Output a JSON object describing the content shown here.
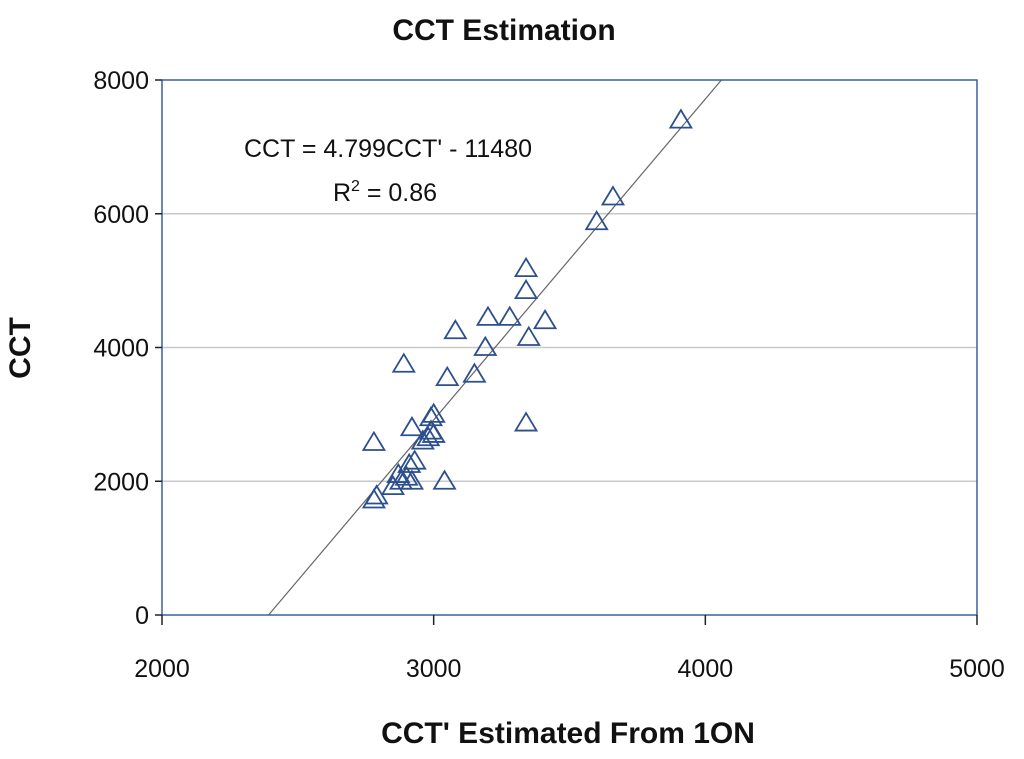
{
  "chart_data": {
    "type": "scatter",
    "title": "CCT Estimation",
    "xlabel": "CCT' Estimated From 1ON",
    "ylabel": "CCT",
    "xlim": [
      2000,
      5000
    ],
    "ylim": [
      0,
      8000
    ],
    "xticks": [
      "2000",
      "3000",
      "4000",
      "5000"
    ],
    "yticks": [
      "0",
      "2000",
      "4000",
      "6000",
      "8000"
    ],
    "grid": "horizontal",
    "marker": "open-triangle",
    "colors": {
      "marker": "#2c4f8e",
      "frame": "#3a5fa0",
      "grid": "#c8c8c8",
      "trendline": "#666666"
    },
    "annotation": {
      "equation": "CCT = 4.799CCT' - 11480",
      "r2_prefix": "R",
      "r2_sup": "2",
      "r2_suffix": " = 0.86"
    },
    "trendline": {
      "slope": 4.799,
      "intercept": -11480
    },
    "points": [
      {
        "x": 2780,
        "y": 1720
      },
      {
        "x": 2790,
        "y": 1780
      },
      {
        "x": 2850,
        "y": 1920
      },
      {
        "x": 2880,
        "y": 2000
      },
      {
        "x": 2900,
        "y": 2060
      },
      {
        "x": 2870,
        "y": 2100
      },
      {
        "x": 2920,
        "y": 2000
      },
      {
        "x": 2910,
        "y": 2250
      },
      {
        "x": 2930,
        "y": 2300
      },
      {
        "x": 2960,
        "y": 2600
      },
      {
        "x": 2980,
        "y": 2650
      },
      {
        "x": 2990,
        "y": 2750
      },
      {
        "x": 3000,
        "y": 2700
      },
      {
        "x": 2990,
        "y": 2950
      },
      {
        "x": 3000,
        "y": 3000
      },
      {
        "x": 2920,
        "y": 2800
      },
      {
        "x": 2780,
        "y": 2580
      },
      {
        "x": 2890,
        "y": 3750
      },
      {
        "x": 3040,
        "y": 2000
      },
      {
        "x": 3050,
        "y": 3550
      },
      {
        "x": 3080,
        "y": 4250
      },
      {
        "x": 3150,
        "y": 3600
      },
      {
        "x": 3190,
        "y": 4000
      },
      {
        "x": 3200,
        "y": 4450
      },
      {
        "x": 3280,
        "y": 4450
      },
      {
        "x": 3340,
        "y": 4850
      },
      {
        "x": 3340,
        "y": 5180
      },
      {
        "x": 3350,
        "y": 4150
      },
      {
        "x": 3340,
        "y": 2870
      },
      {
        "x": 3410,
        "y": 4400
      },
      {
        "x": 3600,
        "y": 5880
      },
      {
        "x": 3660,
        "y": 6250
      },
      {
        "x": 3910,
        "y": 7400
      }
    ]
  }
}
